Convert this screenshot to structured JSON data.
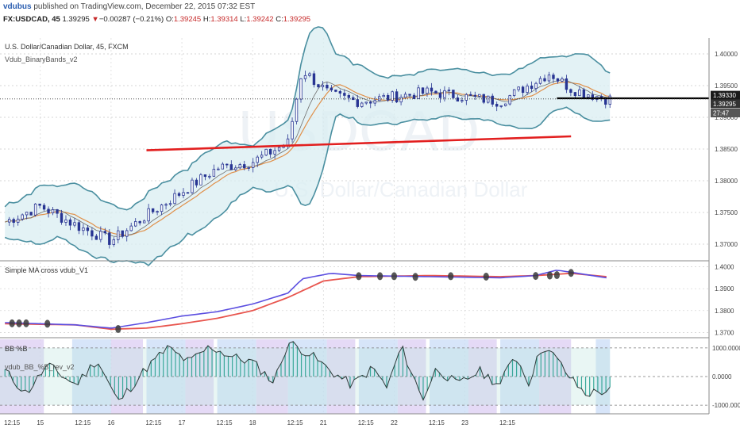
{
  "header": {
    "brand": "vdubus",
    "published": "published on TradingView.com, December 22, 2015 07:32 EST",
    "symbol": "FX:USDCAD, 45",
    "last": "1.39295",
    "change": "−0.00287 (−0.21%)",
    "o_label": "O:",
    "o_val": "1.39245",
    "h_label": "H:",
    "h_val": "1.39314",
    "l_label": "L:",
    "l_val": "1.39242",
    "c_label": "C:",
    "c_val": "1.39295"
  },
  "main_pane": {
    "title": "U.S. Dollar/Canadian Dollar, 45, FXCM",
    "indicator": "Vdub_BinaryBands_v2",
    "watermark_big": "USDCAD",
    "watermark_small": "U.S. Dollar/Canadian Dollar",
    "price_ticks": [
      "1.40000",
      "1.39500",
      "1.39000",
      "1.38500",
      "1.38000",
      "1.37500",
      "1.37000"
    ],
    "price_badges": [
      "1.39330",
      "1.39295",
      "27:47"
    ]
  },
  "ma_pane": {
    "title": "Simple MA cross vdub_V1",
    "ticks": [
      "1.4000",
      "1.3900",
      "1.3800",
      "1.3700"
    ]
  },
  "bb_pane": {
    "title": "BB %B",
    "indicator": "vdub_BB_%B_rev_v2",
    "ticks": [
      "1000.0000",
      "0.0000",
      "-1000.0000"
    ]
  },
  "time_axis": {
    "labels": [
      "12:15",
      "15",
      "12:15",
      "16",
      "12:15",
      "17",
      "12:15",
      "18",
      "12:15",
      "21",
      "12:15",
      "22",
      "12:15",
      "23",
      "12:15"
    ]
  },
  "colors": {
    "candle": "#283593",
    "band": "#4a8fa0",
    "band_fill": "#d9eef1",
    "trend": "#e21f1f",
    "fast_ma": "#5b4ee0",
    "slow_ma": "#e8554e",
    "cross_marker": "#3a3a3a",
    "histogram": "#3aa89a",
    "zone_a": "#c9dcf7",
    "zone_b": "#dccdf3"
  },
  "chart_data": [
    {
      "type": "candlestick",
      "title": "U.S. Dollar/Canadian Dollar, 45, FXCM",
      "ylim": [
        1.3675,
        1.4025
      ],
      "bands": [
        "upper",
        "middle",
        "lower"
      ],
      "trend_line": {
        "from": [
          16,
          1.3848
        ],
        "to": [
          22,
          1.387
        ]
      },
      "horizontal_line": {
        "price": 1.393,
        "from": 21.8
      },
      "close_approx": [
        {
          "t": 14.0,
          "p": 1.3735
        },
        {
          "t": 14.5,
          "p": 1.376
        },
        {
          "t": 15.0,
          "p": 1.373
        },
        {
          "t": 15.5,
          "p": 1.3705
        },
        {
          "t": 16.0,
          "p": 1.3745
        },
        {
          "t": 16.6,
          "p": 1.379
        },
        {
          "t": 17.0,
          "p": 1.382
        },
        {
          "t": 17.5,
          "p": 1.383
        },
        {
          "t": 18.0,
          "p": 1.386
        },
        {
          "t": 18.2,
          "p": 1.3975
        },
        {
          "t": 18.6,
          "p": 1.3935
        },
        {
          "t": 19.0,
          "p": 1.3925
        },
        {
          "t": 20.0,
          "p": 1.394
        },
        {
          "t": 21.0,
          "p": 1.3925
        },
        {
          "t": 21.7,
          "p": 1.397
        },
        {
          "t": 22.0,
          "p": 1.3945
        },
        {
          "t": 22.5,
          "p": 1.3929
        }
      ]
    },
    {
      "type": "line",
      "title": "Simple MA cross vdub_V1",
      "ylim": [
        1.368,
        1.402
      ],
      "series": [
        {
          "name": "",
          "role": "fast",
          "values": [
            [
              14.0,
              1.3745
            ],
            [
              15.0,
              1.3735
            ],
            [
              15.5,
              1.372
            ],
            [
              16.0,
              1.3745
            ],
            [
              16.5,
              1.3775
            ],
            [
              17.0,
              1.3795
            ],
            [
              17.5,
              1.383
            ],
            [
              18.0,
              1.388
            ],
            [
              18.2,
              1.3945
            ],
            [
              18.6,
              1.397
            ],
            [
              19.0,
              1.396
            ],
            [
              20.0,
              1.3955
            ],
            [
              21.0,
              1.395
            ],
            [
              21.5,
              1.396
            ],
            [
              21.8,
              1.3985
            ],
            [
              22.0,
              1.3975
            ],
            [
              22.5,
              1.395
            ]
          ]
        },
        {
          "name": "",
          "role": "slow",
          "values": [
            [
              14.0,
              1.374
            ],
            [
              15.0,
              1.3735
            ],
            [
              15.5,
              1.3715
            ],
            [
              16.0,
              1.372
            ],
            [
              16.5,
              1.374
            ],
            [
              17.0,
              1.3765
            ],
            [
              17.5,
              1.38
            ],
            [
              18.0,
              1.386
            ],
            [
              18.5,
              1.3935
            ],
            [
              19.0,
              1.3955
            ],
            [
              20.0,
              1.396
            ],
            [
              21.0,
              1.3955
            ],
            [
              21.5,
              1.396
            ],
            [
              22.0,
              1.397
            ],
            [
              22.5,
              1.3955
            ]
          ]
        }
      ],
      "cross_markers": [
        {
          "t": 14.1,
          "v": 1.3742
        },
        {
          "t": 14.2,
          "v": 1.3742
        },
        {
          "t": 14.3,
          "v": 1.3742
        },
        {
          "t": 14.6,
          "v": 1.374
        },
        {
          "t": 15.6,
          "v": 1.3716
        },
        {
          "t": 19.0,
          "v": 1.3957
        },
        {
          "t": 19.3,
          "v": 1.3957
        },
        {
          "t": 19.5,
          "v": 1.3957
        },
        {
          "t": 19.8,
          "v": 1.3954
        },
        {
          "t": 20.3,
          "v": 1.3957
        },
        {
          "t": 20.8,
          "v": 1.3955
        },
        {
          "t": 21.5,
          "v": 1.3958
        },
        {
          "t": 21.7,
          "v": 1.396
        },
        {
          "t": 21.8,
          "v": 1.3962
        },
        {
          "t": 22.0,
          "v": 1.3972
        }
      ]
    },
    {
      "type": "area",
      "title": "BB %B",
      "ylim": [
        -1300,
        1300
      ],
      "series": [
        {
          "name": "",
          "values": [
            [
              14.0,
              200
            ],
            [
              14.3,
              -600
            ],
            [
              14.6,
              400
            ],
            [
              15.0,
              -300
            ],
            [
              15.3,
              600
            ],
            [
              15.6,
              -900
            ],
            [
              16.0,
              300
            ],
            [
              16.3,
              1000
            ],
            [
              16.6,
              500
            ],
            [
              16.9,
              1050
            ],
            [
              17.2,
              700
            ],
            [
              17.5,
              500
            ],
            [
              17.8,
              -200
            ],
            [
              18.0,
              1200
            ],
            [
              18.3,
              800
            ],
            [
              18.6,
              200
            ],
            [
              18.9,
              -300
            ],
            [
              19.2,
              300
            ],
            [
              19.4,
              -400
            ],
            [
              19.6,
              1050
            ],
            [
              19.9,
              -800
            ],
            [
              20.1,
              300
            ],
            [
              20.4,
              -300
            ],
            [
              20.7,
              200
            ],
            [
              21.0,
              -300
            ],
            [
              21.2,
              800
            ],
            [
              21.4,
              -200
            ],
            [
              21.6,
              1100
            ],
            [
              21.8,
              600
            ],
            [
              22.0,
              -100
            ],
            [
              22.2,
              -600
            ],
            [
              22.5,
              -500
            ]
          ]
        }
      ],
      "reference_lines": [
        1000,
        0,
        -1000
      ]
    }
  ]
}
